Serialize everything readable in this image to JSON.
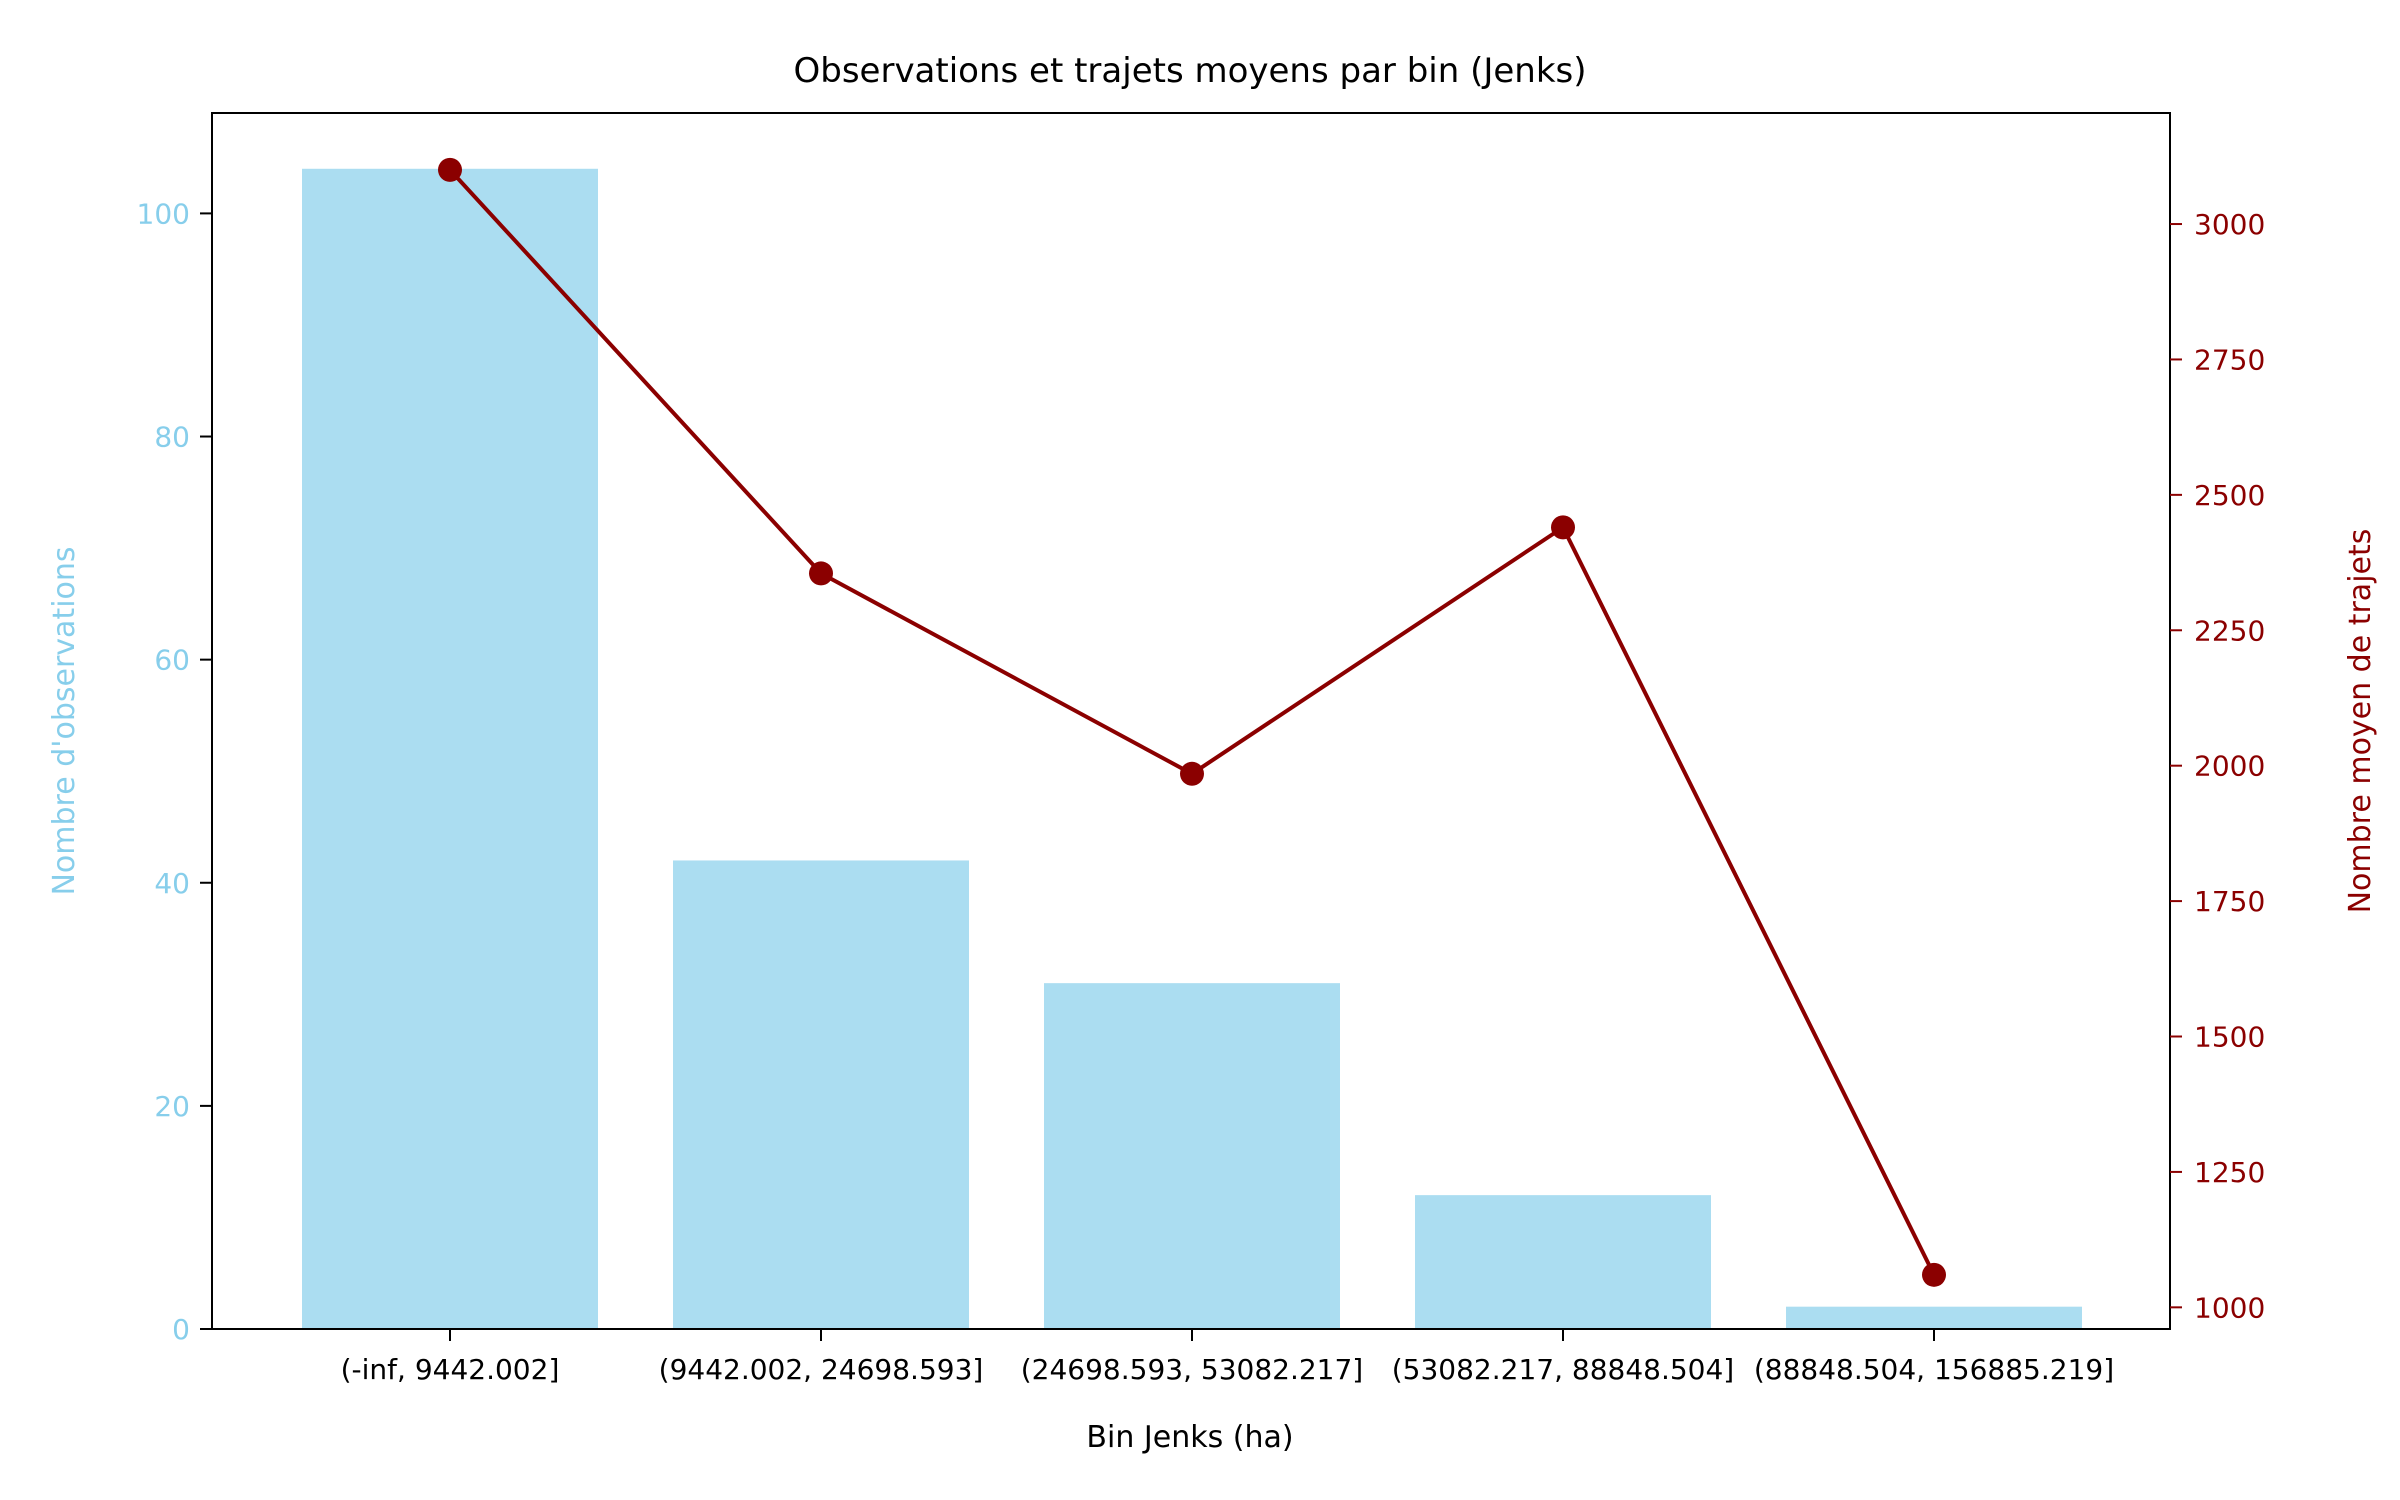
{
  "chart_data": {
    "type": "bar",
    "title": "Observations et trajets moyens par bin (Jenks)",
    "xlabel": "Bin Jenks (ha)",
    "ylabel_left": "Nombre d'observations",
    "ylabel_right": "Nombre moyen de trajets",
    "categories": [
      "(-inf, 9442.002]",
      "(9442.002, 24698.593]",
      "(24698.593, 53082.217]",
      "(53082.217, 88848.504]",
      "(88848.504, 156885.219]"
    ],
    "ylim_left": [
      0,
      109
    ],
    "ylim_right": [
      960,
      3205
    ],
    "yticks_left": [
      0,
      20,
      40,
      60,
      80,
      100
    ],
    "yticks_right": [
      1000,
      1250,
      1500,
      1750,
      2000,
      2250,
      2500,
      2750,
      3000
    ],
    "series": [
      {
        "name": "Nombre d'observations",
        "kind": "bar",
        "axis": "left",
        "color": "#87ceeb",
        "values": [
          104,
          42,
          31,
          12,
          2
        ]
      },
      {
        "name": "Nombre moyen de trajets",
        "kind": "line",
        "axis": "right",
        "color": "#8b0000",
        "values": [
          3100,
          2355,
          1985,
          2440,
          1060
        ]
      }
    ],
    "grid": false,
    "legend": "none"
  }
}
